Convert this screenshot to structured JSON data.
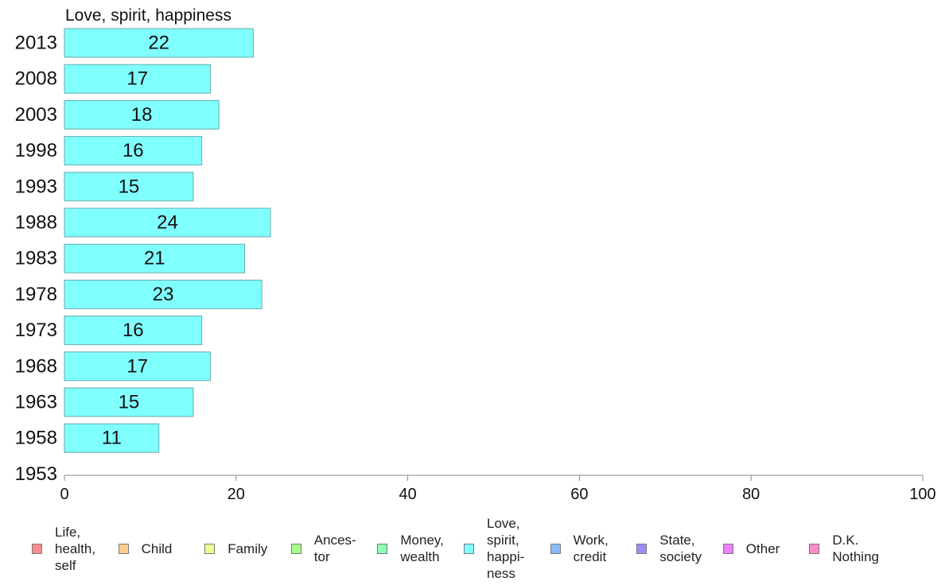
{
  "chart_data": {
    "type": "bar",
    "orientation": "horizontal",
    "title": "Love, spirit, happiness",
    "categories": [
      "2013",
      "2008",
      "2003",
      "1998",
      "1993",
      "1988",
      "1983",
      "1978",
      "1973",
      "1968",
      "1963",
      "1958",
      "1953"
    ],
    "values": [
      22,
      17,
      18,
      16,
      15,
      24,
      21,
      23,
      16,
      17,
      15,
      11,
      null
    ],
    "data_labels": [
      "22",
      "17",
      "18",
      "16",
      "15",
      "24",
      "21",
      "23",
      "16",
      "17",
      "15",
      "11",
      ""
    ],
    "xlim": [
      0,
      100
    ],
    "xticks": [
      "0",
      "20",
      "40",
      "60",
      "80",
      "100"
    ],
    "bar_color": "#80ffff",
    "grid": false,
    "legend_placement": "bottom",
    "legend": [
      {
        "label": "Life,\nhealth,\nself",
        "color": "#ff8c8c"
      },
      {
        "label": "Child",
        "color": "#ffcc8c"
      },
      {
        "label": "Family",
        "color": "#eeff8c"
      },
      {
        "label": "Ances-\ntor",
        "color": "#a6ff8c"
      },
      {
        "label": "Money,\nwealth",
        "color": "#8cffb3"
      },
      {
        "label": "Love,\nspirit,\nhappi-\nness",
        "color": "#80ffff"
      },
      {
        "label": "Work,\ncredit",
        "color": "#8cb8ff"
      },
      {
        "label": "State,\nsociety",
        "color": "#9e8cff"
      },
      {
        "label": "Other",
        "color": "#ee80ff"
      },
      {
        "label": "D.K.\nNothing",
        "color": "#ff8cc6"
      }
    ]
  }
}
